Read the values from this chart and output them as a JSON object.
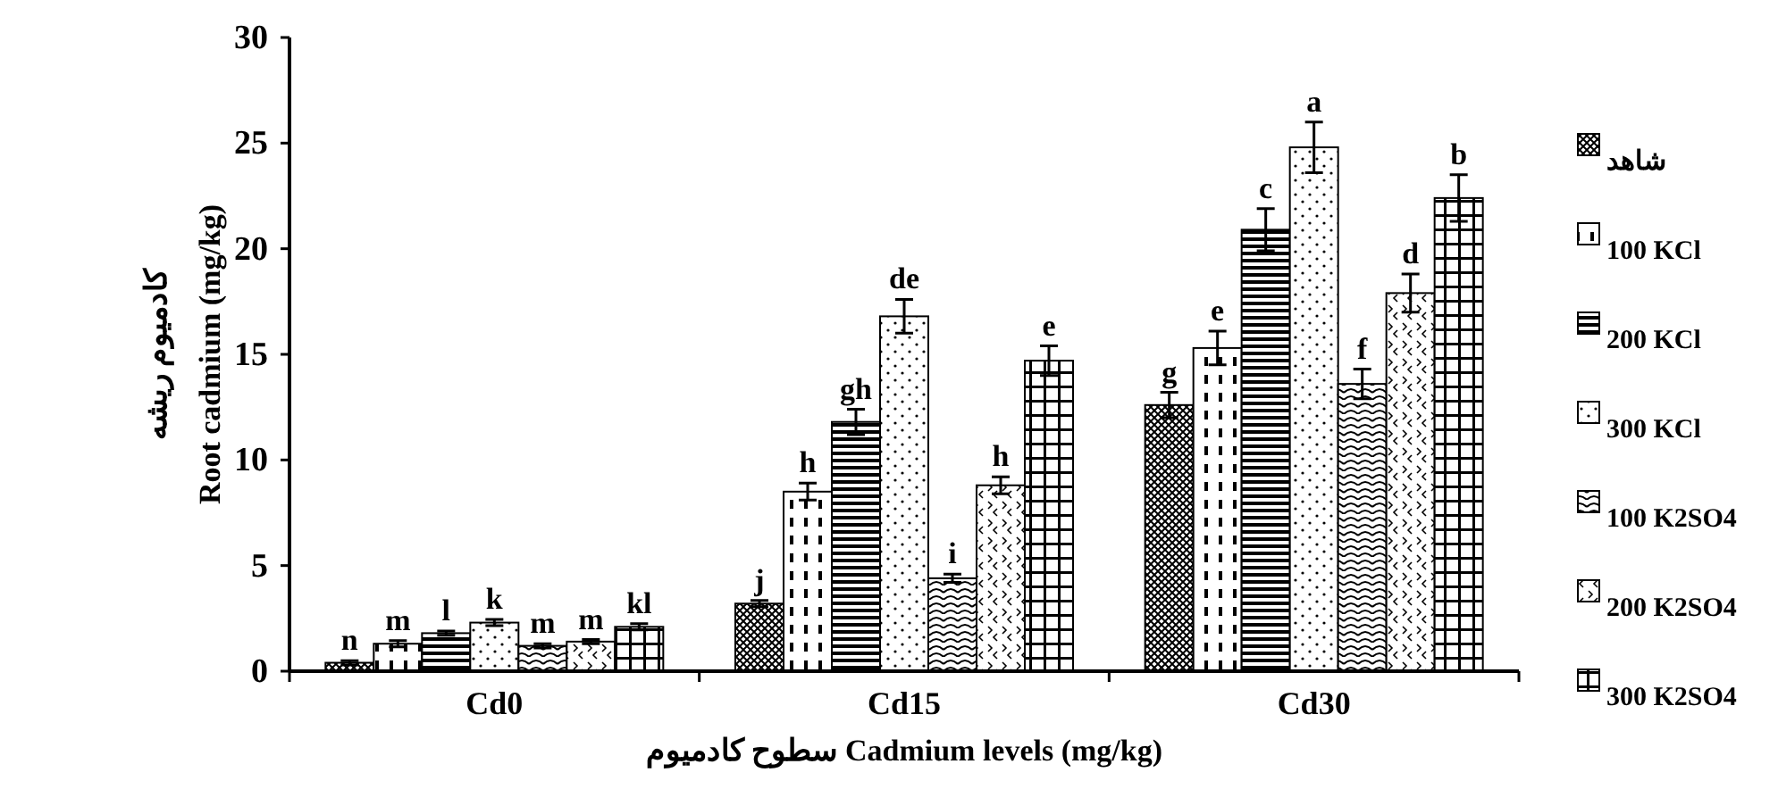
{
  "chart_data": {
    "type": "bar",
    "xlabel": "سطوح کادمیوم  Cadmium levels (mg/kg)",
    "ylabel": "کادمیوم ریشه\nRoot cadmium (mg/kg)",
    "categories": [
      "Cd0",
      "Cd15",
      "Cd30"
    ],
    "ylim": [
      0,
      30
    ],
    "yticks": [
      0,
      5,
      10,
      15,
      20,
      25,
      30
    ],
    "legend": "right",
    "grid": false,
    "series": [
      {
        "name": "شاهد",
        "color": "#000000",
        "values": [
          0.4,
          3.2,
          12.6
        ],
        "errors": [
          0.1,
          0.15,
          0.6
        ],
        "value_labels": [
          "n",
          "j",
          "g"
        ]
      },
      {
        "name": "100 KCl",
        "color": "#000000",
        "values": [
          1.3,
          8.5,
          15.3
        ],
        "errors": [
          0.15,
          0.4,
          0.8
        ],
        "value_labels": [
          "m",
          "h",
          "e"
        ]
      },
      {
        "name": "200 KCl",
        "color": "#000000",
        "values": [
          1.8,
          11.8,
          20.9
        ],
        "errors": [
          0.1,
          0.6,
          1.0
        ],
        "value_labels": [
          "l",
          "gh",
          "c"
        ]
      },
      {
        "name": "300 KCl",
        "color": "#000000",
        "values": [
          2.3,
          16.8,
          24.8
        ],
        "errors": [
          0.15,
          0.8,
          1.2
        ],
        "value_labels": [
          "k",
          "de",
          "a"
        ]
      },
      {
        "name": "100 K2SO4",
        "color": "#000000",
        "values": [
          1.2,
          4.4,
          13.6
        ],
        "errors": [
          0.1,
          0.2,
          0.7
        ],
        "value_labels": [
          "m",
          "i",
          "f"
        ]
      },
      {
        "name": "200 K2SO4",
        "color": "#000000",
        "values": [
          1.4,
          8.8,
          17.9
        ],
        "errors": [
          0.1,
          0.4,
          0.9
        ],
        "value_labels": [
          "m",
          "h",
          "d"
        ]
      },
      {
        "name": "300 K2SO4",
        "color": "#000000",
        "values": [
          2.1,
          14.7,
          22.4
        ],
        "errors": [
          0.15,
          0.7,
          1.1
        ],
        "value_labels": [
          "kl",
          "e",
          "b"
        ]
      }
    ]
  }
}
